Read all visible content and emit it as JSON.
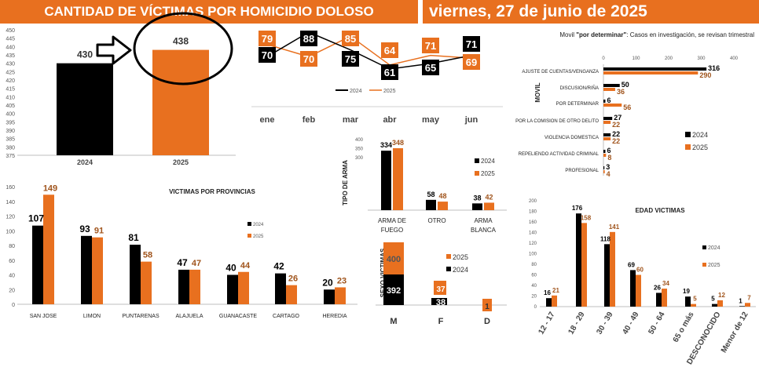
{
  "header": {
    "title": "CANTIDAD DE VÍCTIMAS POR HOMICIDIO DOLOSO",
    "date": "viernes, 27 de junio de 2025"
  },
  "colors": {
    "y2024": "#000000",
    "y2025": "#e8701f",
    "banner": "#e8701f"
  },
  "icons": {
    "arrow": "right-arrow-icon",
    "circle": "highlight-circle"
  },
  "chart_data": [
    {
      "id": "total",
      "type": "bar",
      "categories": [
        "2024",
        "2025"
      ],
      "values": [
        430,
        438
      ],
      "ylim": [
        375,
        450
      ],
      "yticks": [
        375,
        380,
        385,
        390,
        395,
        400,
        405,
        410,
        415,
        420,
        425,
        430,
        435,
        440,
        445,
        450
      ]
    },
    {
      "id": "mensual",
      "type": "line",
      "categories": [
        "ene",
        "feb",
        "mar",
        "abr",
        "may",
        "jun"
      ],
      "series": [
        {
          "name": "2024",
          "values": [
            70,
            88,
            75,
            61,
            65,
            71
          ]
        },
        {
          "name": "2025",
          "values": [
            79,
            70,
            85,
            64,
            71,
            69
          ]
        }
      ]
    },
    {
      "id": "provincias",
      "type": "bar",
      "title": "VICTIMAS POR PROVINCIAS",
      "categories": [
        "SAN JOSE",
        "LIMON",
        "PUNTARENAS",
        "ALAJUELA",
        "GUANACASTE",
        "CARTAGO",
        "HEREDIA"
      ],
      "series": [
        {
          "name": "2024",
          "values": [
            107,
            93,
            81,
            47,
            40,
            42,
            20
          ]
        },
        {
          "name": "2025",
          "values": [
            149,
            91,
            58,
            47,
            44,
            26,
            23
          ]
        }
      ],
      "ylim": [
        0,
        160
      ],
      "yticks": [
        0,
        20,
        40,
        60,
        80,
        100,
        120,
        140,
        160
      ]
    },
    {
      "id": "arma",
      "type": "bar",
      "ylabel": "TIPO DE ARMA",
      "categories": [
        "ARMA DE FUEGO",
        "OTRO",
        "ARMA BLANCA"
      ],
      "category_lines": [
        [
          "ARMA DE",
          "FUEGO"
        ],
        [
          "OTRO"
        ],
        [
          "ARMA",
          "BLANCA"
        ]
      ],
      "series": [
        {
          "name": "2024",
          "values": [
            334,
            58,
            38
          ]
        },
        {
          "name": "2025",
          "values": [
            348,
            48,
            42
          ]
        }
      ],
      "yticks": [
        300,
        350,
        400
      ]
    },
    {
      "id": "sexo",
      "type": "bar",
      "ylabel": "SEXO VICTIMAS",
      "categories": [
        "M",
        "F",
        "D"
      ],
      "series": [
        {
          "name": "2024",
          "values": [
            392,
            38,
            null
          ]
        },
        {
          "name": "2025",
          "values": [
            400,
            37,
            1
          ]
        }
      ]
    },
    {
      "id": "movil",
      "type": "bar",
      "title_prefix": "Movil ",
      "title_bold": "\"por determinar\"",
      "title_suffix": ": Casos en investigación, se revisan trimestral",
      "ylabel": "MOVIL",
      "categories": [
        "AJUSTE DE CUENTAS/VENGANZA",
        "DISCUSION/RIÑA",
        "POR DETERMINAR",
        "POR LA COMISION DE OTRO DELITO",
        "VIOLENCIA DOMESTICA",
        "REPELIENDO ACTIVIDAD CRIMINAL",
        "PROFESIONAL"
      ],
      "series": [
        {
          "name": "2024",
          "values": [
            316,
            50,
            6,
            27,
            22,
            6,
            3
          ]
        },
        {
          "name": "2025",
          "values": [
            290,
            36,
            56,
            22,
            22,
            8,
            4
          ]
        }
      ],
      "xlim": [
        0,
        400
      ],
      "xticks": [
        0,
        100,
        200,
        300,
        400
      ]
    },
    {
      "id": "edad",
      "type": "bar",
      "title": "EDAD VICTIMAS",
      "categories": [
        "12 - 17",
        "18 - 29",
        "30 - 39",
        "40 - 49",
        "50 - 64",
        "65 o más",
        "DESCONOCIDO",
        "Menor de 12"
      ],
      "series": [
        {
          "name": "2024",
          "values": [
            16,
            176,
            118,
            69,
            26,
            19,
            5,
            1
          ]
        },
        {
          "name": "2025",
          "values": [
            21,
            158,
            141,
            60,
            34,
            5,
            12,
            7
          ]
        }
      ],
      "ylim": [
        0,
        200
      ],
      "yticks": [
        0,
        20,
        40,
        60,
        80,
        100,
        120,
        140,
        160,
        180,
        200
      ]
    }
  ]
}
